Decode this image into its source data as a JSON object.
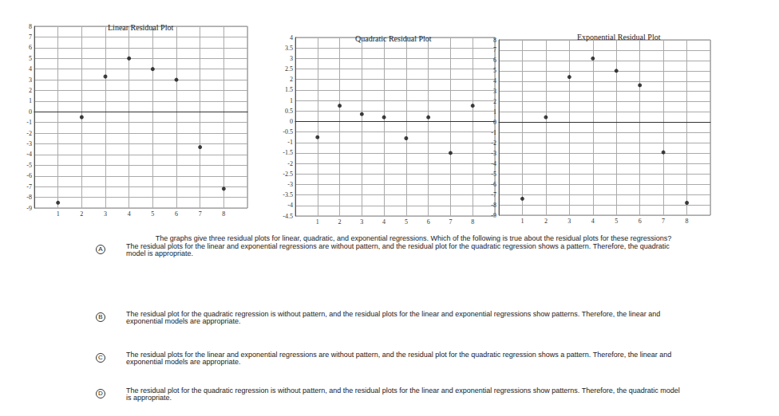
{
  "chart_data": [
    {
      "type": "scatter",
      "title": "Linear Residual Plot",
      "x": [
        1,
        2,
        3,
        4,
        5,
        6,
        7,
        8
      ],
      "values": [
        -8.5,
        -0.5,
        3.3,
        5,
        4,
        3,
        -3.3,
        -7.2
      ],
      "xlim": [
        0,
        9
      ],
      "xticks": [
        1,
        2,
        3,
        4,
        5,
        6,
        7,
        8
      ],
      "ylim": [
        -9,
        8
      ],
      "yticks": [
        -9,
        -8,
        -7,
        -6,
        -5,
        -4,
        -3,
        -2,
        -1,
        0,
        1,
        2,
        3,
        4,
        5,
        6,
        7,
        8
      ],
      "grid": true,
      "color": "#111111",
      "marker": "circle"
    },
    {
      "type": "scatter",
      "title": "Quadratic Residual Plot",
      "x": [
        1,
        2,
        3,
        4,
        5,
        6,
        7,
        8
      ],
      "values": [
        -0.75,
        0.75,
        0.35,
        0.2,
        -0.8,
        0.2,
        -1.5,
        0.75
      ],
      "xlim": [
        0,
        9
      ],
      "xticks": [
        1,
        2,
        3,
        4,
        5,
        6,
        7,
        8
      ],
      "ylim": [
        -4.5,
        4
      ],
      "yticks": [
        -4.5,
        -4,
        -3.5,
        -3,
        -2.5,
        -2,
        -1.5,
        -1,
        -0.5,
        0,
        0.5,
        1,
        1.5,
        2,
        2.5,
        3,
        3.5,
        4
      ],
      "grid": true,
      "color": "#111111",
      "marker": "circle"
    },
    {
      "type": "scatter",
      "title": "Exponential Residual Plot",
      "x": [
        1,
        2,
        3,
        4,
        5,
        6,
        7,
        8
      ],
      "values": [
        -7.4,
        0.5,
        4.4,
        6.2,
        5,
        3.6,
        -2.9,
        -7.8
      ],
      "xlim": [
        0,
        9
      ],
      "xticks": [
        1,
        2,
        3,
        4,
        5,
        6,
        7,
        8
      ],
      "ylim": [
        -9,
        8
      ],
      "yticks": [
        -9,
        -8,
        -7,
        -6,
        -5,
        -4,
        -3,
        -2,
        -1,
        0,
        1,
        2,
        3,
        4,
        5,
        6,
        7,
        8
      ],
      "grid": true,
      "color": "#111111",
      "marker": "circle"
    }
  ],
  "question": "The graphs give three residual plots for linear, quadratic, and exponential regressions. Which of the following is true about the residual plots for these regressions?",
  "options": [
    {
      "letter": "A",
      "text": "The residual plots for the linear and exponential regressions are without pattern,  and the residual plot for the quadratic regression shows a pattern. Therefore, the quadratic model is appropriate."
    },
    {
      "letter": "B",
      "text": "The residual plot for the quadratic regression is without pattern, and the residual plots for the linear and exponential regressions show patterns. Therefore, the linear and exponential models are appropriate."
    },
    {
      "letter": "C",
      "text": "The residual plots for the linear and exponential regressions are without pattern,  and the residual plot for the quadratic regression shows a pattern. Therefore, the linear and exponential models are appropriate."
    },
    {
      "letter": "D",
      "text": "The residual plot for the quadratic regression is without pattern, and the residual plots for the linear and exponential regressions show patterns. Therefore, the quadratic model is appropriate."
    }
  ]
}
